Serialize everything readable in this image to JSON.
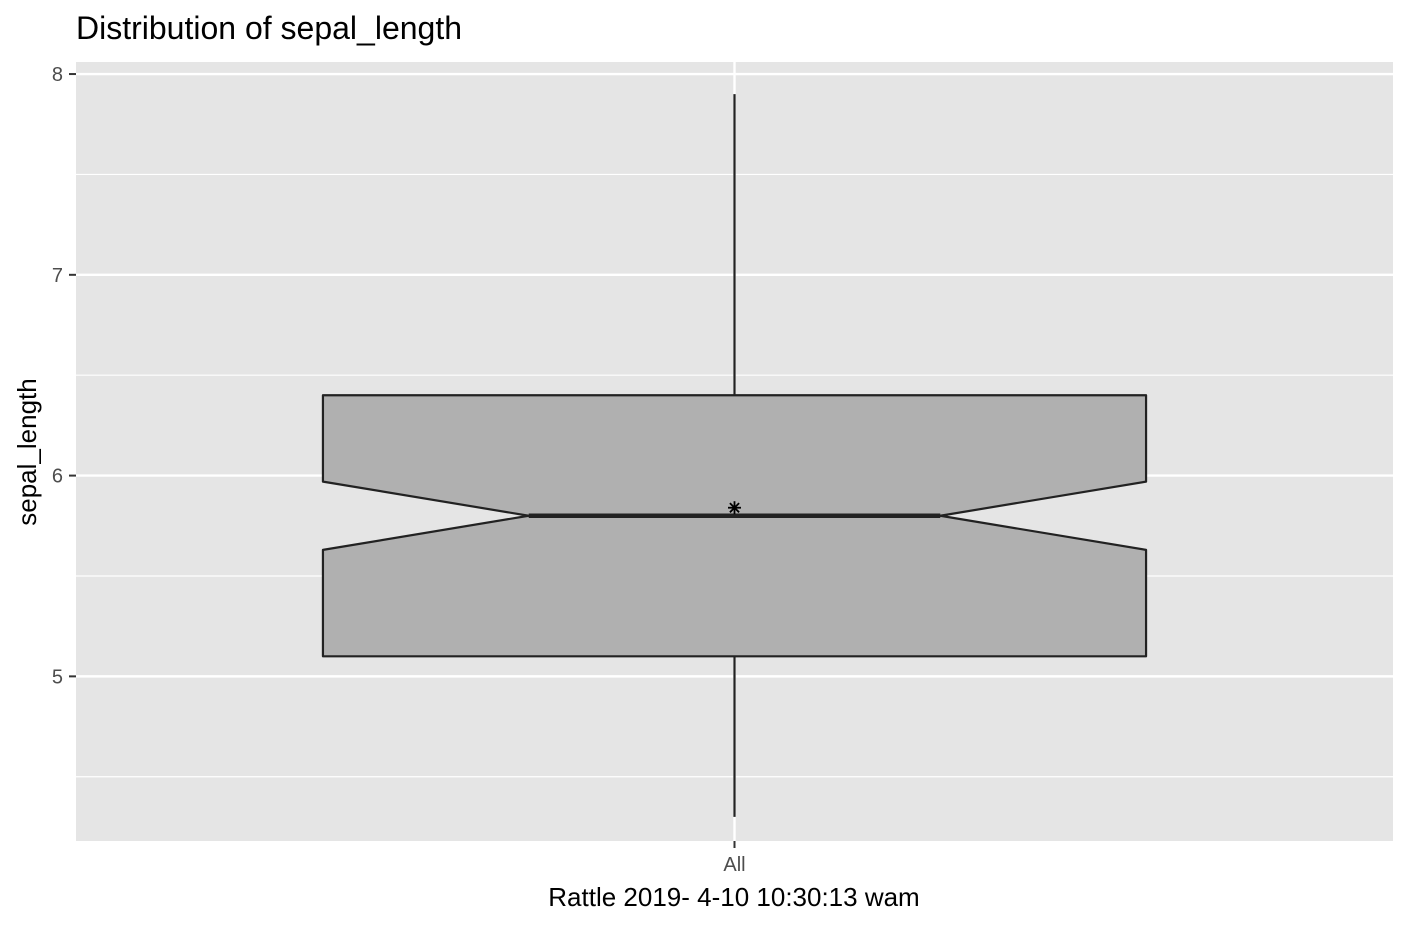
{
  "chart_data": {
    "type": "boxplot",
    "title": "Distribution of sepal_length",
    "xlabel": "Rattle 2019- 4-10 10:30:13 wam",
    "ylabel": "sepal_length",
    "categories": [
      "All"
    ],
    "ylim": [
      4.18,
      8.06
    ],
    "yticks": [
      5,
      6,
      7,
      8
    ],
    "yticks_minor": [
      4.5,
      5.5,
      6.5,
      7.5
    ],
    "grid": true,
    "notched": true,
    "boxes": [
      {
        "category": "All",
        "min": 4.3,
        "q1": 5.1,
        "median": 5.8,
        "q3": 6.4,
        "max": 7.9,
        "mean": 5.84,
        "notch_low": 5.63,
        "notch_high": 5.97
      }
    ],
    "colors": {
      "panel": "#e5e5e5",
      "grid": "#ffffff",
      "box_fill": "#b0b0b0",
      "box_line": "#222222"
    }
  }
}
